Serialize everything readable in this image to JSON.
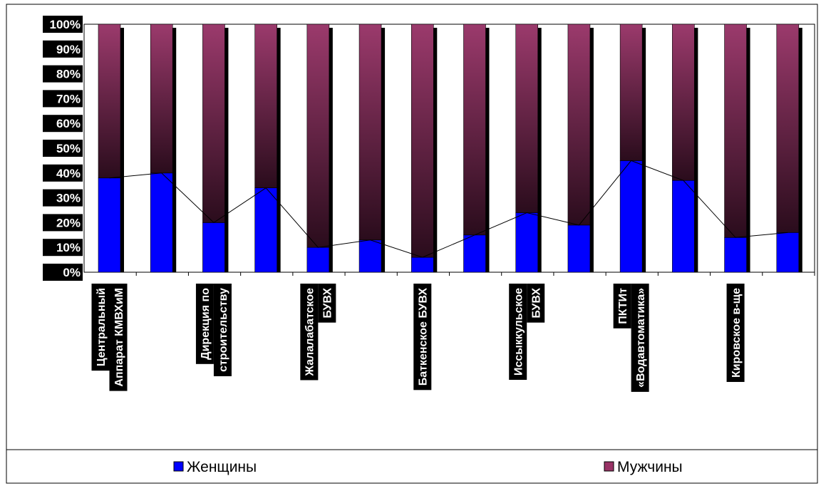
{
  "chart_data": {
    "type": "bar",
    "stacked": true,
    "percent_stacked": true,
    "categories": [
      "Центральный Аппарат КМВХиМ",
      "",
      "Дирекция по строительству",
      "",
      "Жалалабатское БУВХ",
      "",
      "Баткенское БУВХ",
      "",
      "Иссыккульское БУВХ",
      "",
      "ПКТИт «Водавтоматика»",
      "",
      "Кировское в-ще",
      ""
    ],
    "category_lines": [
      [
        "Центральный",
        "Аппарат КМВХиМ"
      ],
      [],
      [
        "Дирекция по",
        "строительству"
      ],
      [],
      [
        "Жалалабатское",
        "БУВХ"
      ],
      [],
      [
        "Баткенское БУВХ"
      ],
      [],
      [
        "Иссыккульское",
        "БУВХ"
      ],
      [],
      [
        "ПКТИт",
        "«Водавтоматика»"
      ],
      [],
      [
        "Кировское в-ще"
      ],
      []
    ],
    "series": [
      {
        "name": "Женщины",
        "color": "#0000ff",
        "values": [
          38,
          40,
          20,
          34,
          10,
          13,
          6,
          15,
          24,
          19,
          45,
          37,
          14,
          16
        ]
      },
      {
        "name": "Мужчины",
        "color": "#993366",
        "values": [
          62,
          60,
          80,
          66,
          90,
          87,
          94,
          85,
          76,
          81,
          55,
          63,
          86,
          84
        ]
      }
    ],
    "overlay_line": {
      "series": "Женщины",
      "color": "#000000"
    },
    "yticks": [
      "0%",
      "10%",
      "20%",
      "30%",
      "40%",
      "50%",
      "60%",
      "70%",
      "80%",
      "90%",
      "100%"
    ],
    "ylim": [
      0,
      100
    ],
    "xlabel": "",
    "ylabel": "",
    "grid": false,
    "legend_position": "bottom"
  }
}
